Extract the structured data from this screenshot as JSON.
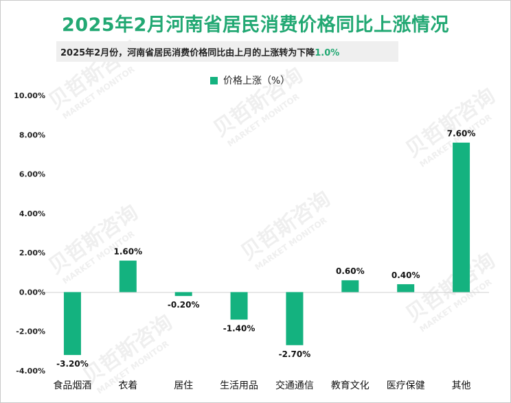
{
  "header": {
    "title": "2025年2月河南省居民消费价格同比上涨情况",
    "subtitle_main": "2025年2月份，河南省居民消费价格同比由上月的上涨转为下降",
    "subtitle_value": "1.0%"
  },
  "watermark": {
    "cn": "贝哲斯咨询",
    "en": "MARKET MONITOR"
  },
  "colors": {
    "bar": "#14b27f",
    "title": "#22a873"
  },
  "chart_data": {
    "type": "bar",
    "title": "2025年2月河南省居民消费价格同比上涨情况",
    "categories": [
      "食品烟酒",
      "衣着",
      "居住",
      "生活用品",
      "交通通信",
      "教育文化",
      "医疗保健",
      "其他"
    ],
    "series": [
      {
        "name": "价格上涨（%）",
        "values": [
          -3.2,
          1.6,
          -0.2,
          -1.4,
          -2.7,
          0.6,
          0.4,
          7.6
        ],
        "labels": [
          "-3.20%",
          "1.60%",
          "-0.20%",
          "-1.40%",
          "-2.70%",
          "0.60%",
          "0.40%",
          "7.60%"
        ]
      }
    ],
    "yticks": [
      10,
      8,
      6,
      4,
      2,
      0,
      -2,
      -4
    ],
    "ytick_labels": [
      "10.00%",
      "8.00%",
      "6.00%",
      "4.00%",
      "2.00%",
      "0.00%",
      "-2.00%",
      "-4.00%"
    ],
    "ylim": [
      -4,
      10
    ],
    "grid": false,
    "legend_position": "top"
  }
}
